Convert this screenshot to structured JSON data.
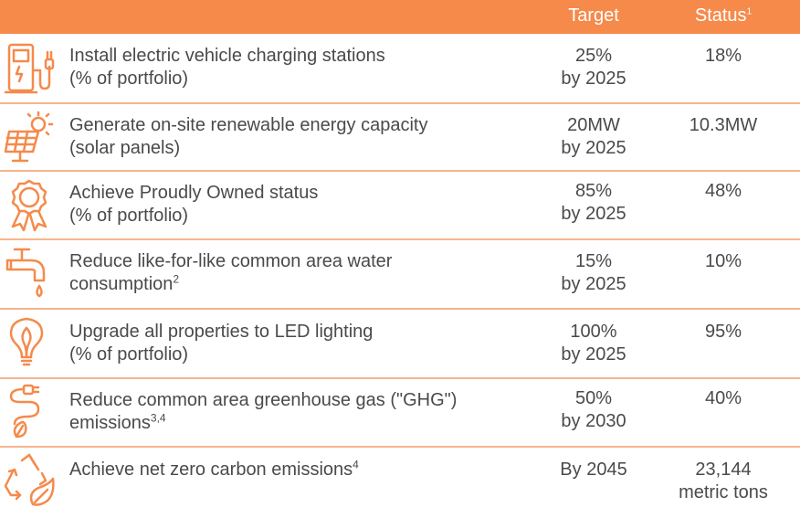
{
  "header": {
    "target_label": "Target",
    "status_label": "Status",
    "status_footnote": "1"
  },
  "rows": [
    {
      "goal_line1": "Install electric vehicle charging stations",
      "goal_line2": "(% of portfolio)",
      "goal_sup": "",
      "target_line1": "25%",
      "target_line2": "by 2025",
      "status_line1": "18%",
      "status_line2": "",
      "icon": "ev-charger-icon"
    },
    {
      "goal_line1": "Generate on-site renewable energy capacity",
      "goal_line2": "(solar panels)",
      "goal_sup": "",
      "target_line1": "20MW",
      "target_line2": "by 2025",
      "status_line1": "10.3MW",
      "status_line2": "",
      "icon": "solar-panel-icon"
    },
    {
      "goal_line1": "Achieve Proudly Owned status",
      "goal_line2": "(% of portfolio)",
      "goal_sup": "",
      "target_line1": "85%",
      "target_line2": "by 2025",
      "status_line1": "48%",
      "status_line2": "",
      "icon": "award-ribbon-icon"
    },
    {
      "goal_line1": "Reduce like-for-like common area water",
      "goal_line2": "consumption",
      "goal_sup": "2",
      "target_line1": "15%",
      "target_line2": "by 2025",
      "status_line1": "10%",
      "status_line2": "",
      "icon": "water-faucet-icon"
    },
    {
      "goal_line1": "Upgrade all properties to LED lighting",
      "goal_line2": "(% of portfolio)",
      "goal_sup": "",
      "target_line1": "100%",
      "target_line2": "by 2025",
      "status_line1": "95%",
      "status_line2": "",
      "icon": "led-bulb-icon"
    },
    {
      "goal_line1": "Reduce common area greenhouse gas (\"GHG\")",
      "goal_line2": "emissions",
      "goal_sup": "3,4",
      "target_line1": "50%",
      "target_line2": "by 2030",
      "status_line1": "40%",
      "status_line2": "",
      "icon": "plug-leaf-icon"
    },
    {
      "goal_line1": "Achieve net zero carbon emissions",
      "goal_line2": "",
      "goal_sup": "4",
      "target_line1": "By 2045",
      "target_line2": "",
      "status_line1": "23,144",
      "status_line2": "metric tons",
      "icon": "recycle-leaf-icon"
    }
  ],
  "colors": {
    "accent": "#f58a4b",
    "divider": "#f6b48c",
    "text": "#4a4a4a"
  }
}
